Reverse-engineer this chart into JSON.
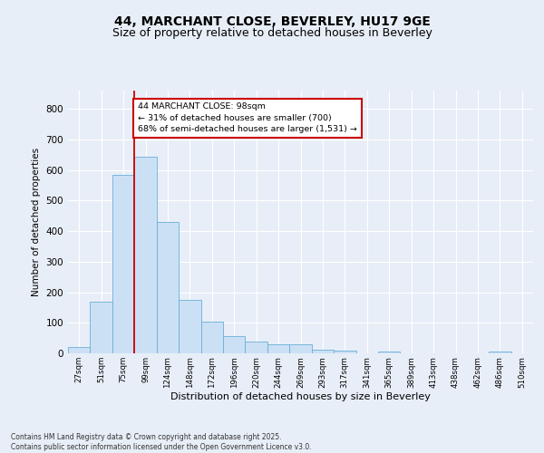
{
  "title": "44, MARCHANT CLOSE, BEVERLEY, HU17 9GE",
  "subtitle": "Size of property relative to detached houses in Beverley",
  "xlabel": "Distribution of detached houses by size in Beverley",
  "ylabel": "Number of detached properties",
  "bar_color": "#cce0f5",
  "bar_edge_color": "#6aaed6",
  "vline_x_index": 3,
  "vline_color": "#cc0000",
  "annotation_text": "44 MARCHANT CLOSE: 98sqm\n← 31% of detached houses are smaller (700)\n68% of semi-detached houses are larger (1,531) →",
  "bin_labels": [
    "27sqm",
    "51sqm",
    "75sqm",
    "99sqm",
    "124sqm",
    "148sqm",
    "172sqm",
    "196sqm",
    "220sqm",
    "244sqm",
    "269sqm",
    "293sqm",
    "317sqm",
    "341sqm",
    "365sqm",
    "389sqm",
    "413sqm",
    "438sqm",
    "462sqm",
    "486sqm",
    "510sqm"
  ],
  "bar_heights": [
    20,
    170,
    583,
    645,
    430,
    175,
    103,
    57,
    40,
    30,
    30,
    13,
    9,
    0,
    6,
    0,
    0,
    0,
    0,
    5,
    0
  ],
  "ylim": [
    0,
    860
  ],
  "yticks": [
    0,
    100,
    200,
    300,
    400,
    500,
    600,
    700,
    800
  ],
  "footnote": "Contains HM Land Registry data © Crown copyright and database right 2025.\nContains public sector information licensed under the Open Government Licence v3.0.",
  "bg_color": "#e8eef7",
  "plot_bg_color": "#e8eef7",
  "grid_color": "#ffffff",
  "title_fontsize": 10,
  "subtitle_fontsize": 9
}
